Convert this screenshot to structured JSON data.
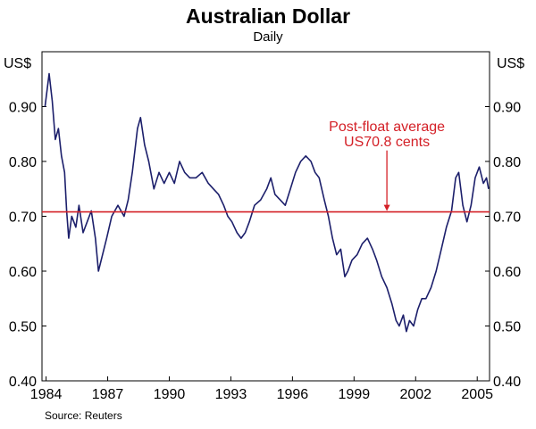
{
  "chart_data": {
    "type": "line",
    "title": "Australian Dollar",
    "subtitle": "Daily",
    "y_unit_left": "US$",
    "y_unit_right": "US$",
    "source": "Source: Reuters",
    "ylim": [
      0.4,
      1.0
    ],
    "xlim": [
      1983.8,
      2005.6
    ],
    "y_ticks": [
      "0.40",
      "0.50",
      "0.60",
      "0.70",
      "0.80",
      "0.90"
    ],
    "x_ticks": [
      "1984",
      "1987",
      "1990",
      "1993",
      "1996",
      "1999",
      "2002",
      "2005"
    ],
    "grid": false,
    "colors": {
      "series": "#1c1f6b",
      "average": "#d42027",
      "annotation": "#d42027"
    },
    "average_line": {
      "value": 0.708,
      "label_line1": "Post-float average",
      "label_line2": "US70.8 cents",
      "arrow_x": 2000.6
    },
    "series": [
      {
        "values": [
          [
            1983.95,
            0.9
          ],
          [
            1984.05,
            0.93
          ],
          [
            1984.15,
            0.96
          ],
          [
            1984.3,
            0.91
          ],
          [
            1984.45,
            0.84
          ],
          [
            1984.6,
            0.86
          ],
          [
            1984.75,
            0.81
          ],
          [
            1984.9,
            0.78
          ],
          [
            1985.0,
            0.71
          ],
          [
            1985.1,
            0.66
          ],
          [
            1985.25,
            0.7
          ],
          [
            1985.45,
            0.68
          ],
          [
            1985.6,
            0.72
          ],
          [
            1985.8,
            0.67
          ],
          [
            1986.0,
            0.69
          ],
          [
            1986.2,
            0.71
          ],
          [
            1986.4,
            0.66
          ],
          [
            1986.55,
            0.6
          ],
          [
            1986.75,
            0.63
          ],
          [
            1986.95,
            0.66
          ],
          [
            1987.2,
            0.7
          ],
          [
            1987.5,
            0.72
          ],
          [
            1987.8,
            0.7
          ],
          [
            1988.0,
            0.73
          ],
          [
            1988.2,
            0.78
          ],
          [
            1988.45,
            0.86
          ],
          [
            1988.6,
            0.88
          ],
          [
            1988.8,
            0.83
          ],
          [
            1989.0,
            0.8
          ],
          [
            1989.25,
            0.75
          ],
          [
            1989.5,
            0.78
          ],
          [
            1989.75,
            0.76
          ],
          [
            1990.0,
            0.78
          ],
          [
            1990.25,
            0.76
          ],
          [
            1990.5,
            0.8
          ],
          [
            1990.75,
            0.78
          ],
          [
            1991.0,
            0.77
          ],
          [
            1991.3,
            0.77
          ],
          [
            1991.6,
            0.78
          ],
          [
            1991.9,
            0.76
          ],
          [
            1992.15,
            0.75
          ],
          [
            1992.4,
            0.74
          ],
          [
            1992.65,
            0.72
          ],
          [
            1992.85,
            0.7
          ],
          [
            1993.05,
            0.69
          ],
          [
            1993.3,
            0.67
          ],
          [
            1993.5,
            0.66
          ],
          [
            1993.7,
            0.67
          ],
          [
            1993.9,
            0.69
          ],
          [
            1994.15,
            0.72
          ],
          [
            1994.45,
            0.73
          ],
          [
            1994.75,
            0.75
          ],
          [
            1994.95,
            0.77
          ],
          [
            1995.15,
            0.74
          ],
          [
            1995.4,
            0.73
          ],
          [
            1995.65,
            0.72
          ],
          [
            1995.9,
            0.75
          ],
          [
            1996.15,
            0.78
          ],
          [
            1996.4,
            0.8
          ],
          [
            1996.65,
            0.81
          ],
          [
            1996.9,
            0.8
          ],
          [
            1997.1,
            0.78
          ],
          [
            1997.3,
            0.77
          ],
          [
            1997.55,
            0.73
          ],
          [
            1997.75,
            0.7
          ],
          [
            1997.95,
            0.66
          ],
          [
            1998.15,
            0.63
          ],
          [
            1998.35,
            0.64
          ],
          [
            1998.55,
            0.59
          ],
          [
            1998.7,
            0.6
          ],
          [
            1998.9,
            0.62
          ],
          [
            1999.15,
            0.63
          ],
          [
            1999.4,
            0.65
          ],
          [
            1999.65,
            0.66
          ],
          [
            1999.9,
            0.64
          ],
          [
            2000.1,
            0.62
          ],
          [
            2000.35,
            0.59
          ],
          [
            2000.6,
            0.57
          ],
          [
            2000.85,
            0.54
          ],
          [
            2001.05,
            0.51
          ],
          [
            2001.2,
            0.5
          ],
          [
            2001.4,
            0.52
          ],
          [
            2001.55,
            0.49
          ],
          [
            2001.7,
            0.51
          ],
          [
            2001.9,
            0.5
          ],
          [
            2002.1,
            0.53
          ],
          [
            2002.3,
            0.55
          ],
          [
            2002.5,
            0.55
          ],
          [
            2002.75,
            0.57
          ],
          [
            2003.0,
            0.6
          ],
          [
            2003.25,
            0.64
          ],
          [
            2003.5,
            0.68
          ],
          [
            2003.75,
            0.71
          ],
          [
            2003.95,
            0.77
          ],
          [
            2004.1,
            0.78
          ],
          [
            2004.3,
            0.72
          ],
          [
            2004.5,
            0.69
          ],
          [
            2004.7,
            0.72
          ],
          [
            2004.9,
            0.77
          ],
          [
            2005.1,
            0.79
          ],
          [
            2005.3,
            0.76
          ],
          [
            2005.45,
            0.77
          ],
          [
            2005.55,
            0.75
          ]
        ]
      }
    ]
  }
}
